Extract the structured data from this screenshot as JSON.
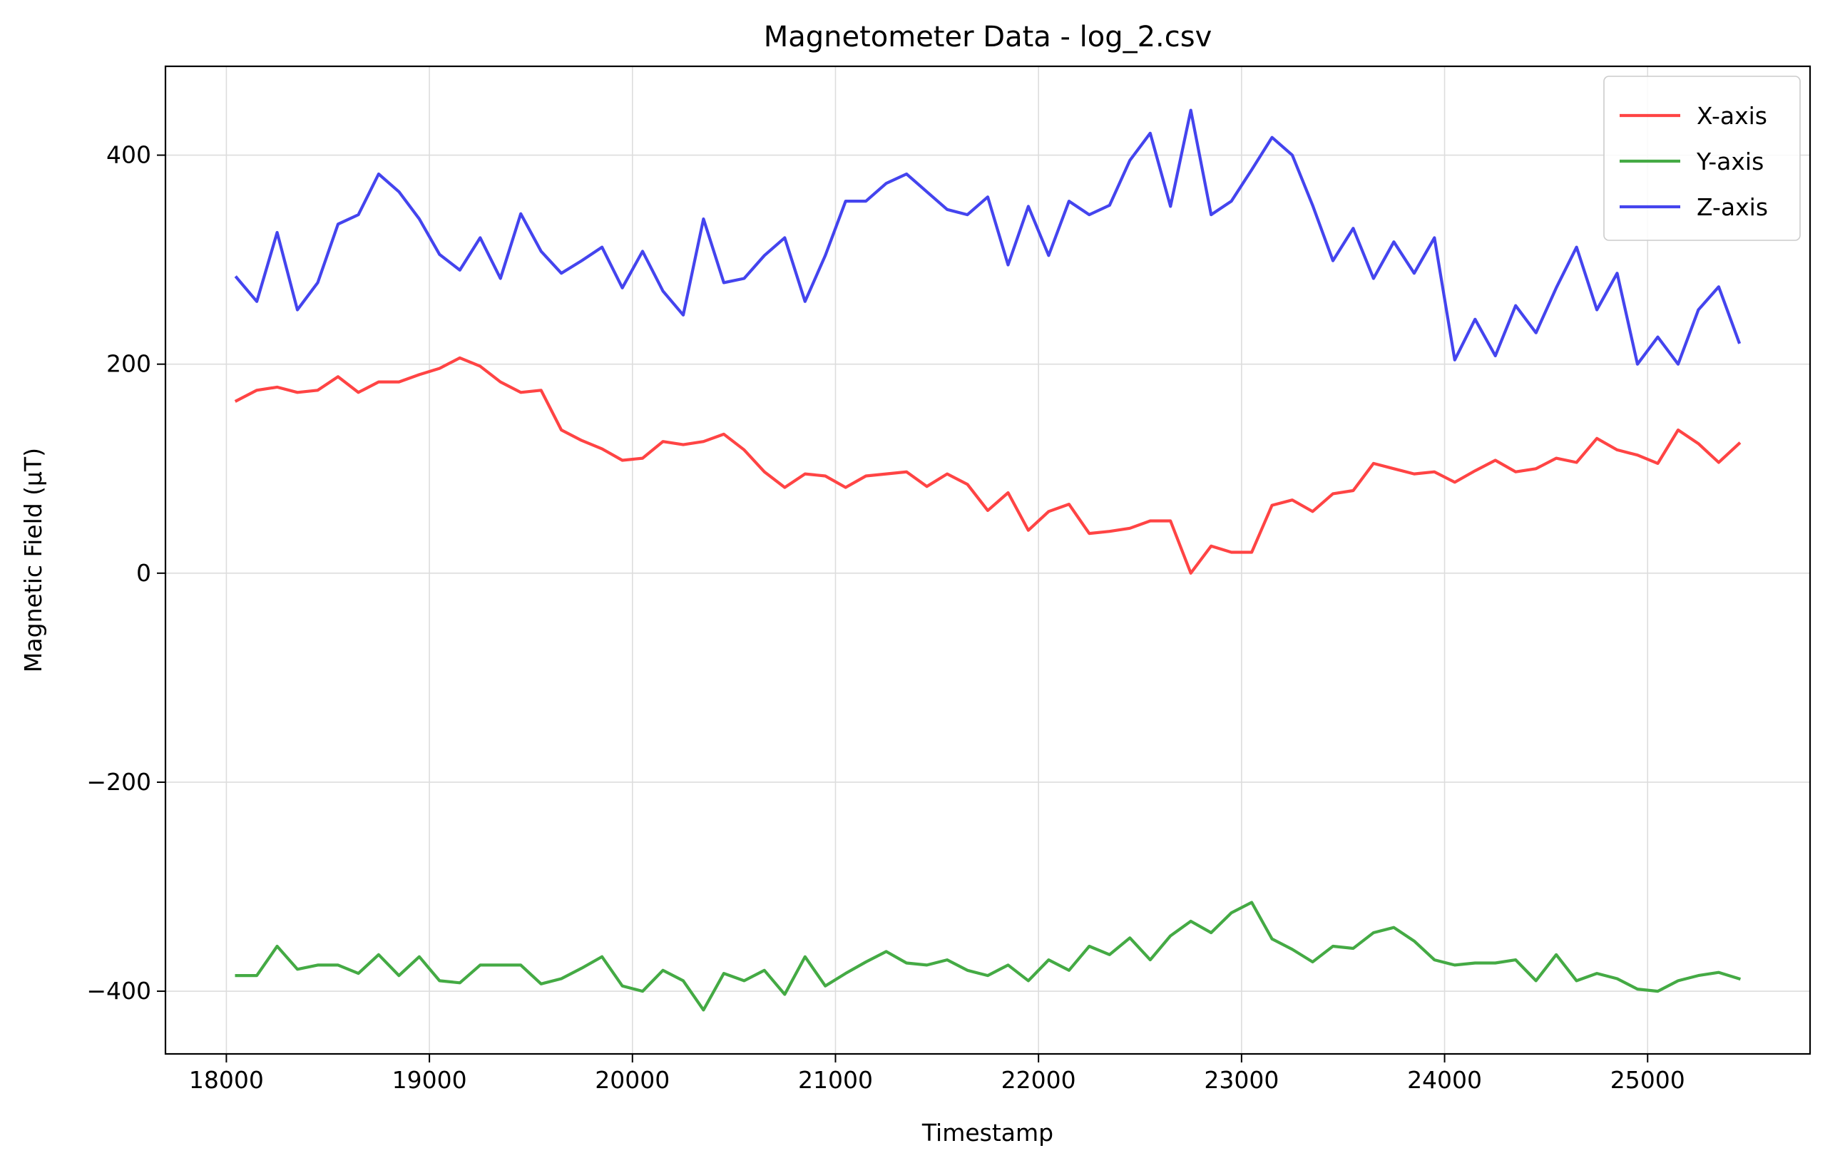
{
  "chart_data": {
    "type": "line",
    "title": "Magnetometer Data - log_2.csv",
    "xlabel": "Timestamp",
    "ylabel": "Magnetic Field (μT)",
    "xlim": [
      17700,
      25800
    ],
    "ylim": [
      -460,
      485
    ],
    "xticks": [
      18000,
      19000,
      20000,
      21000,
      22000,
      23000,
      24000,
      25000
    ],
    "yticks": [
      -400,
      -200,
      0,
      200,
      400
    ],
    "ytick_labels": [
      "−400",
      "−200",
      "0",
      "200",
      "400"
    ],
    "grid": true,
    "legend_position": "top-right",
    "x": [
      18050,
      18150,
      18250,
      18350,
      18450,
      18550,
      18650,
      18750,
      18850,
      18950,
      19050,
      19150,
      19250,
      19350,
      19450,
      19550,
      19650,
      19750,
      19850,
      19950,
      20050,
      20150,
      20250,
      20350,
      20450,
      20550,
      20650,
      20750,
      20850,
      20950,
      21050,
      21150,
      21250,
      21350,
      21450,
      21550,
      21650,
      21750,
      21850,
      21950,
      22050,
      22150,
      22250,
      22350,
      22450,
      22550,
      22650,
      22750,
      22850,
      22950,
      23050,
      23150,
      23250,
      23350,
      23450,
      23550,
      23650,
      23750,
      23850,
      23950,
      24050,
      24150,
      24250,
      24350,
      24450,
      24550,
      24650,
      24750,
      24850,
      24950,
      25050,
      25150,
      25250,
      25350,
      25450
    ],
    "series": [
      {
        "name": "X-axis",
        "color": "#ff4444",
        "values": [
          165,
          175,
          178,
          173,
          175,
          188,
          173,
          183,
          183,
          190,
          196,
          206,
          198,
          183,
          173,
          175,
          137,
          127,
          119,
          108,
          110,
          126,
          123,
          126,
          133,
          118,
          97,
          82,
          95,
          93,
          82,
          93,
          95,
          97,
          83,
          95,
          85,
          60,
          77,
          41,
          59,
          66,
          38,
          40,
          43,
          50,
          50,
          0,
          26,
          20,
          20,
          65,
          70,
          59,
          76,
          79,
          105,
          100,
          95,
          97,
          87,
          98,
          108,
          97,
          100,
          110,
          106,
          129,
          118,
          113,
          105,
          137,
          124,
          106,
          124
        ]
      },
      {
        "name": "Y-axis",
        "color": "#44aa44",
        "values": [
          -385,
          -385,
          -357,
          -379,
          -375,
          -375,
          -383,
          -365,
          -385,
          -367,
          -390,
          -392,
          -375,
          -375,
          -375,
          -393,
          -388,
          -378,
          -367,
          -395,
          -400,
          -380,
          -390,
          -418,
          -383,
          -390,
          -380,
          -403,
          -367,
          -395,
          -383,
          -372,
          -362,
          -373,
          -375,
          -370,
          -380,
          -385,
          -375,
          -390,
          -370,
          -380,
          -357,
          -365,
          -349,
          -370,
          -347,
          -333,
          -344,
          -325,
          -315,
          -350,
          -360,
          -372,
          -357,
          -359,
          -344,
          -339,
          -352,
          -370,
          -375,
          -373,
          -373,
          -370,
          -390,
          -365,
          -390,
          -383,
          -388,
          -398,
          -400,
          -390,
          -385,
          -382,
          -388
        ]
      },
      {
        "name": "Z-axis",
        "color": "#4444ee",
        "values": [
          283,
          260,
          326,
          252,
          278,
          334,
          343,
          382,
          365,
          339,
          305,
          290,
          321,
          282,
          344,
          308,
          287,
          299,
          312,
          273,
          308,
          270,
          247,
          339,
          278,
          282,
          304,
          321,
          260,
          304,
          356,
          356,
          373,
          382,
          365,
          348,
          343,
          360,
          295,
          351,
          304,
          356,
          343,
          352,
          395,
          421,
          351,
          443,
          343,
          356,
          386,
          417,
          400,
          352,
          299,
          330,
          282,
          317,
          287,
          321,
          204,
          243,
          208,
          256,
          230,
          273,
          312,
          252,
          287,
          200,
          226,
          200,
          252,
          274,
          221
        ]
      }
    ]
  }
}
